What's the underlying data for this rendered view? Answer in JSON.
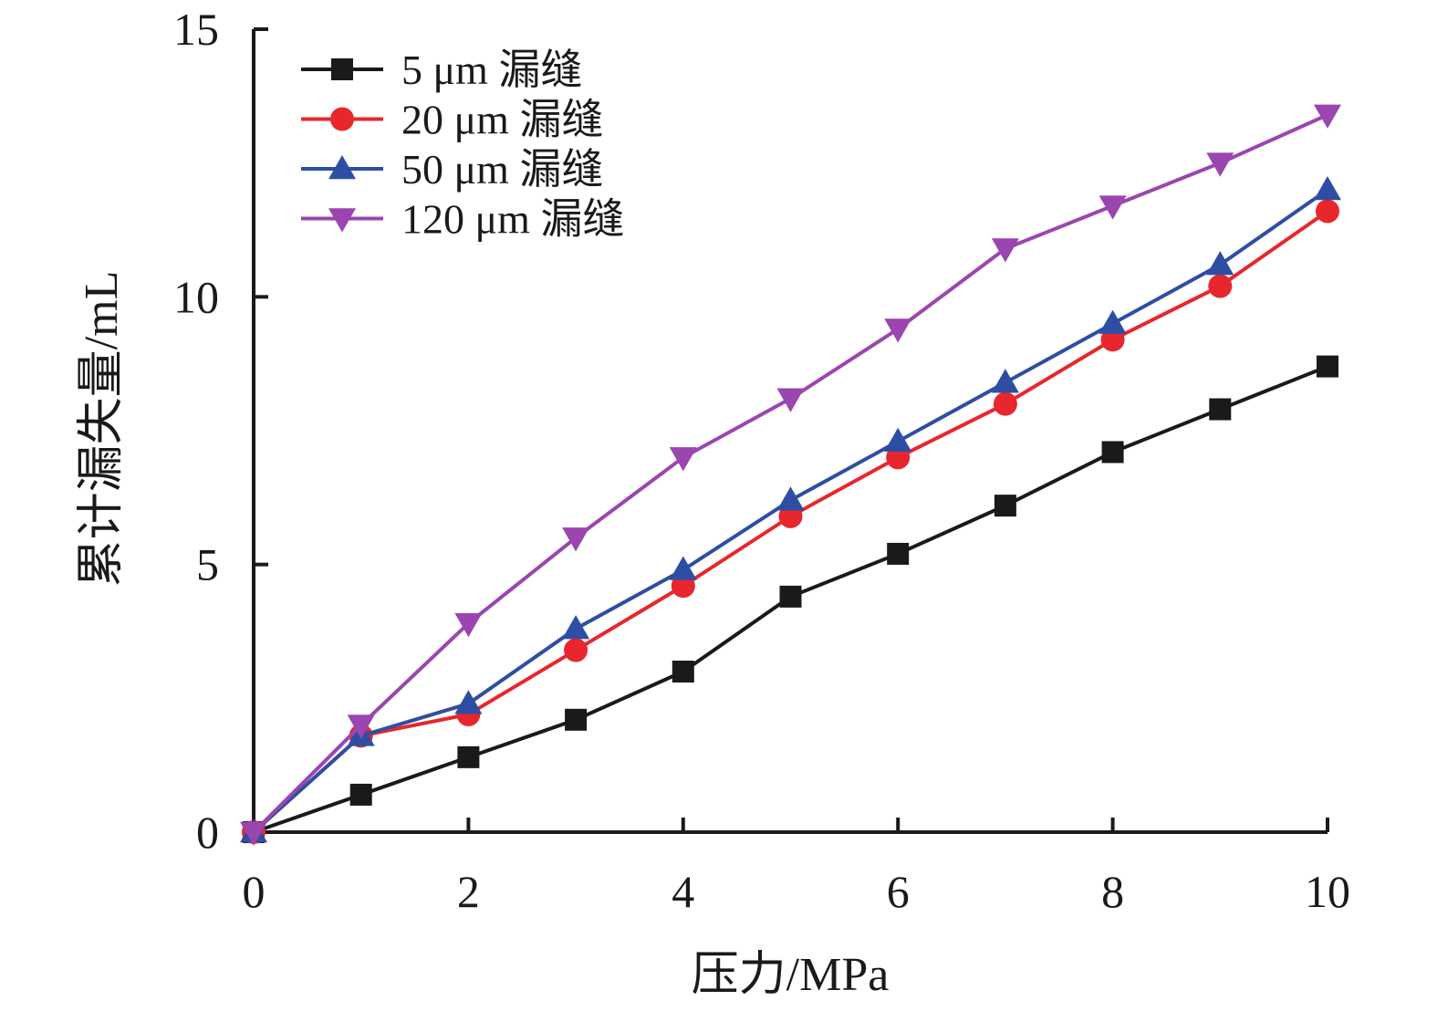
{
  "chart_data": {
    "type": "line",
    "xlabel": "压力/MPa",
    "ylabel": "累计漏失量/mL",
    "xlim": [
      0,
      10
    ],
    "ylim": [
      0,
      15
    ],
    "x_ticks": [
      "0",
      "2",
      "4",
      "6",
      "8",
      "10"
    ],
    "y_ticks": [
      "0",
      "5",
      "10",
      "15"
    ],
    "grid": false,
    "legend_position": "top-left",
    "x": [
      0,
      1,
      2,
      3,
      4,
      5,
      6,
      7,
      8,
      9,
      10
    ],
    "series": [
      {
        "name": "5 μm 漏缝",
        "marker": "square",
        "color": "#1a1a1a",
        "values": [
          0,
          0.7,
          1.4,
          2.1,
          3.0,
          4.4,
          5.2,
          6.1,
          7.1,
          7.9,
          8.7
        ]
      },
      {
        "name": "20 μm 漏缝",
        "marker": "circle",
        "color": "#e8262d",
        "values": [
          0,
          1.8,
          2.2,
          3.4,
          4.6,
          5.9,
          7.0,
          8.0,
          9.2,
          10.2,
          11.6
        ]
      },
      {
        "name": "50 μm 漏缝",
        "marker": "triangle-up",
        "color": "#2e4ea3",
        "values": [
          0,
          1.8,
          2.4,
          3.8,
          4.9,
          6.2,
          7.3,
          8.4,
          9.5,
          10.6,
          12.0
        ]
      },
      {
        "name": "120 μm 漏缝",
        "marker": "triangle-down",
        "color": "#9b45b0",
        "values": [
          0,
          2.0,
          3.9,
          5.5,
          7.0,
          8.1,
          9.4,
          10.9,
          11.7,
          12.5,
          13.4
        ]
      }
    ]
  }
}
